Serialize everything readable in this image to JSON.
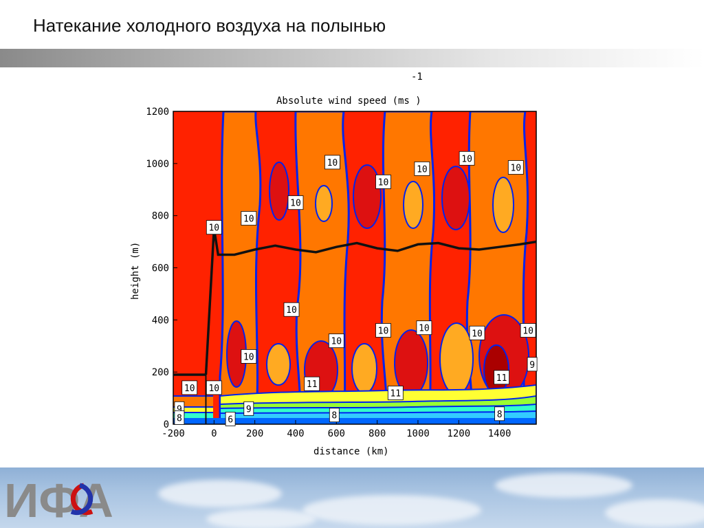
{
  "slide": {
    "title": "Натекание холодного воздуха на полынью"
  },
  "chart_data": {
    "type": "contour",
    "title": "Absolute wind speed (ms  )",
    "title_superscript": "-1",
    "xlabel": "distance (km)",
    "ylabel": "height (m)",
    "xlim": [
      -200,
      1580
    ],
    "ylim": [
      0,
      1200
    ],
    "x_ticks": [
      -200,
      0,
      200,
      400,
      600,
      800,
      1000,
      1200,
      1400
    ],
    "y_ticks": [
      0,
      200,
      400,
      600,
      800,
      1000,
      1200
    ],
    "contour_labels": [
      {
        "text": "10",
        "x": 0,
        "y": 755
      },
      {
        "text": "10",
        "x": 170,
        "y": 790
      },
      {
        "text": "10",
        "x": 400,
        "y": 850
      },
      {
        "text": "10",
        "x": 580,
        "y": 1005
      },
      {
        "text": "10",
        "x": 830,
        "y": 930
      },
      {
        "text": "10",
        "x": 1020,
        "y": 980
      },
      {
        "text": "10",
        "x": 1240,
        "y": 1020
      },
      {
        "text": "10",
        "x": 1480,
        "y": 985
      },
      {
        "text": "10",
        "x": 380,
        "y": 440
      },
      {
        "text": "10",
        "x": 170,
        "y": 260
      },
      {
        "text": "10",
        "x": 600,
        "y": 320
      },
      {
        "text": "10",
        "x": 830,
        "y": 360
      },
      {
        "text": "10",
        "x": 1030,
        "y": 370
      },
      {
        "text": "10",
        "x": 1290,
        "y": 350
      },
      {
        "text": "10",
        "x": 1540,
        "y": 360
      },
      {
        "text": "10",
        "x": -120,
        "y": 140
      },
      {
        "text": "10",
        "x": 0,
        "y": 140
      },
      {
        "text": "11",
        "x": 480,
        "y": 155
      },
      {
        "text": "11",
        "x": 890,
        "y": 120
      },
      {
        "text": "11",
        "x": 1410,
        "y": 180
      },
      {
        "text": "9",
        "x": -170,
        "y": 60
      },
      {
        "text": "9",
        "x": 170,
        "y": 60
      },
      {
        "text": "9",
        "x": 1560,
        "y": 230
      },
      {
        "text": "8",
        "x": -170,
        "y": 25
      },
      {
        "text": "8",
        "x": 590,
        "y": 35
      },
      {
        "text": "8",
        "x": 1400,
        "y": 40
      },
      {
        "text": "6",
        "x": 80,
        "y": 20
      }
    ],
    "boundary_layer_height": {
      "x": [
        -40,
        0,
        20,
        100,
        200,
        300,
        400,
        500,
        600,
        700,
        800,
        900,
        1000,
        1100,
        1200,
        1300,
        1400,
        1500,
        1580
      ],
      "y": [
        190,
        750,
        650,
        650,
        670,
        685,
        670,
        660,
        680,
        695,
        675,
        665,
        690,
        695,
        675,
        670,
        680,
        690,
        700
      ]
    },
    "ice_edge_x": 0,
    "colors": {
      "level_9": "#ff2200",
      "level_10": "#ff7700",
      "level_10_5": "#ffaa22",
      "level_11": "#dd1111",
      "level_12": "#aa0000",
      "contour_line": "#0022ee",
      "low_levels": [
        "#ffff33",
        "#99ff33",
        "#33ffcc",
        "#33ccff",
        "#0066ff"
      ]
    }
  },
  "footer": {
    "logo_text": "ИФА"
  }
}
